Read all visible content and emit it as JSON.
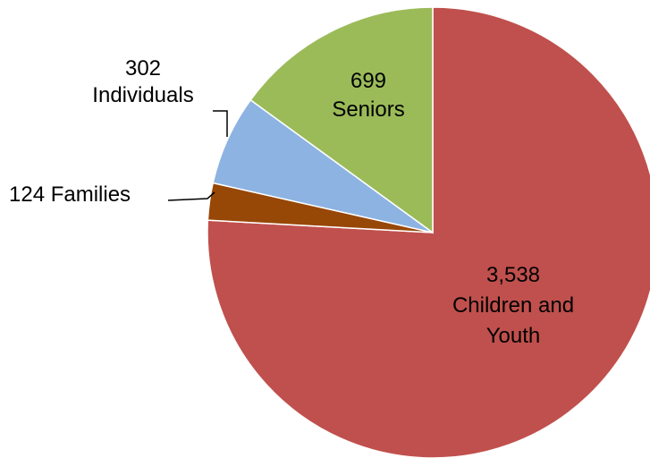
{
  "chart_data": {
    "type": "pie",
    "categories": [
      "Children and Youth",
      "Families",
      "Individuals",
      "Seniors"
    ],
    "values": [
      3538,
      124,
      302,
      699
    ],
    "colors": [
      "#c0504d",
      "#974706",
      "#8db3e2",
      "#9bbb59"
    ],
    "labels": [
      {
        "lines": [
          "3,538",
          "Children and",
          "Youth"
        ]
      },
      {
        "lines": [
          "124 Families"
        ]
      },
      {
        "lines": [
          "302",
          "Individuals"
        ]
      },
      {
        "lines": [
          "699",
          "Seniors"
        ]
      }
    ],
    "start_angle_deg": 0,
    "direction": "clockwise",
    "slice_order": [
      "Children and Youth",
      "Families",
      "Individuals",
      "Seniors"
    ],
    "legend": "none"
  }
}
